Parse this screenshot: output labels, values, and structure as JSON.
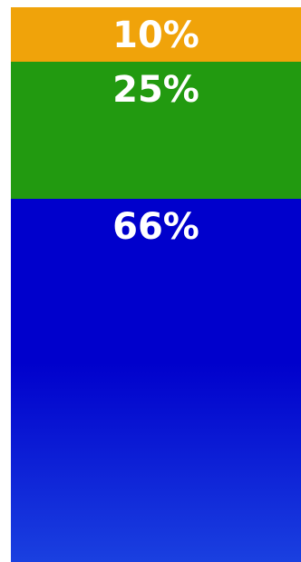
{
  "chart_data": {
    "type": "bar",
    "subtype": "stacked-100-percent",
    "orientation": "vertical",
    "categories": [
      ""
    ],
    "series": [
      {
        "values": [
          10
        ],
        "label": "10%",
        "color": "#F0A30A"
      },
      {
        "values": [
          25
        ],
        "label": "25%",
        "color": "#229A10"
      },
      {
        "values": [
          66
        ],
        "label": "66%",
        "color": "#0000CC",
        "color_bottom": "#1A40E0"
      }
    ],
    "stack_order": "top-to-bottom",
    "title": "",
    "xlabel": "",
    "ylabel": "",
    "legend": "none",
    "grid": false,
    "axes_visible": false
  }
}
